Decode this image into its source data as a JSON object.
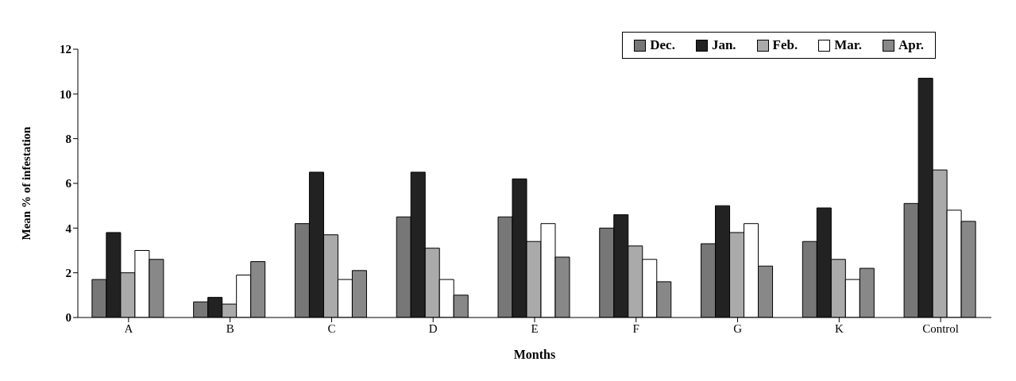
{
  "chart_data": {
    "type": "bar",
    "xlabel": "Months",
    "ylabel": "Mean % of infestation",
    "categories": [
      "A",
      "B",
      "C",
      "D",
      "E",
      "F",
      "G",
      "K",
      "Control"
    ],
    "series": [
      {
        "name": "Dec.",
        "color": "#777777",
        "values": [
          1.7,
          0.7,
          4.2,
          4.5,
          4.5,
          4.0,
          3.3,
          3.4,
          5.1
        ]
      },
      {
        "name": "Jan.",
        "color": "#222222",
        "values": [
          3.8,
          0.9,
          6.5,
          6.5,
          6.2,
          4.6,
          5.0,
          4.9,
          10.7
        ]
      },
      {
        "name": "Feb.",
        "color": "#aaaaaa",
        "values": [
          2.0,
          0.6,
          3.7,
          3.1,
          3.4,
          3.2,
          3.8,
          2.6,
          6.6
        ]
      },
      {
        "name": "Mar.",
        "color": "#ffffff",
        "values": [
          3.0,
          1.9,
          1.7,
          1.7,
          4.2,
          2.6,
          4.2,
          1.7,
          4.8
        ]
      },
      {
        "name": "Apr.",
        "color": "#888888",
        "values": [
          2.6,
          2.5,
          2.1,
          1.0,
          2.7,
          1.6,
          2.3,
          2.2,
          4.3
        ]
      }
    ],
    "ylim": [
      0,
      12
    ],
    "yticks": [
      0,
      2,
      4,
      6,
      8,
      10,
      12
    ],
    "grid": false,
    "legend": "top right"
  }
}
